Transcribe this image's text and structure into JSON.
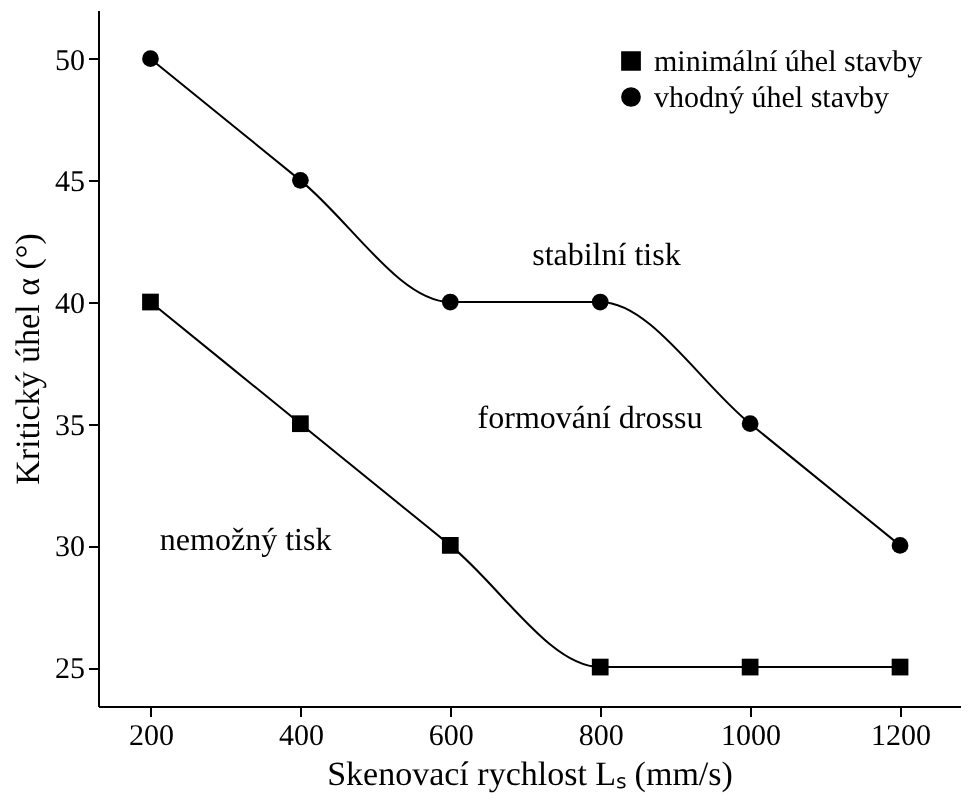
{
  "chart_data": {
    "type": "line",
    "xlabel": "Skenovací rychlost Lₛ (mm/s)",
    "ylabel": "Kritický úhel α (°)",
    "x": [
      200,
      400,
      600,
      800,
      1000,
      1200
    ],
    "series": [
      {
        "name": "minimální úhel stavby",
        "color": "#000000",
        "marker": "square",
        "values": [
          40,
          35,
          30,
          25,
          25,
          25
        ]
      },
      {
        "name": "vhodný úhel stavby",
        "color": "#000000",
        "marker": "circle",
        "values": [
          50,
          45,
          40,
          40,
          35,
          30
        ]
      }
    ],
    "xlim": [
      130,
      1280
    ],
    "ylim": [
      23.4,
      52
    ],
    "xticks": [
      200,
      400,
      600,
      800,
      1000,
      1200
    ],
    "yticks": [
      25,
      30,
      35,
      40,
      45,
      50
    ],
    "grid": false,
    "legend": "top right",
    "line_style": "solid",
    "annotations": [
      "stabilní tisk",
      "formování drossu",
      "nemožný tisk"
    ]
  }
}
